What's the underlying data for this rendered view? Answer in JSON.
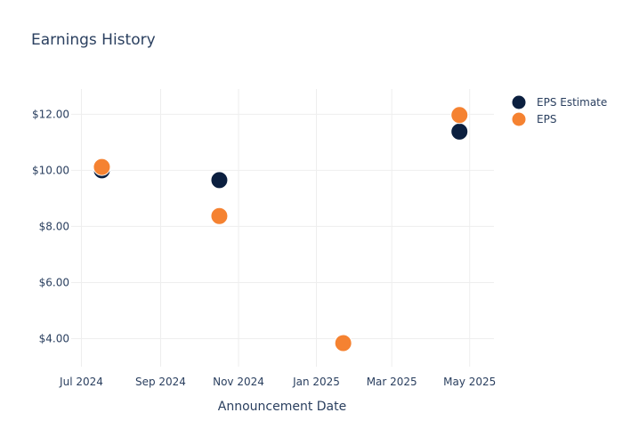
{
  "chart_data": {
    "type": "scatter",
    "title": "Earnings History",
    "xlabel": "Announcement Date",
    "ylabel": "",
    "x_tick_labels": [
      "Jul 2024",
      "Sep 2024",
      "Nov 2024",
      "Jan 2025",
      "Mar 2025",
      "May 2025"
    ],
    "x_ticks": [
      "2024-07-01",
      "2024-09-01",
      "2024-11-01",
      "2025-01-01",
      "2025-03-01",
      "2025-05-01"
    ],
    "y_tick_labels": [
      "$4.00",
      "$6.00",
      "$8.00",
      "$10.00",
      "$12.00"
    ],
    "y_ticks": [
      4,
      6,
      8,
      10,
      12
    ],
    "xlim": [
      "2024-06-23",
      "2025-05-20"
    ],
    "ylim": [
      3,
      12.9
    ],
    "grid": true,
    "legend_position": "top-right",
    "series": [
      {
        "name": "EPS Estimate",
        "color": "#0b1f3f",
        "points": [
          {
            "x": "2024-07-17",
            "y": 10.0
          },
          {
            "x": "2024-10-17",
            "y": 9.65
          },
          {
            "x": "2025-01-22",
            "y": 3.86
          },
          {
            "x": "2025-04-23",
            "y": 11.38
          }
        ]
      },
      {
        "name": "EPS",
        "color": "#f58231",
        "points": [
          {
            "x": "2024-07-17",
            "y": 10.12
          },
          {
            "x": "2024-10-17",
            "y": 8.37
          },
          {
            "x": "2025-01-22",
            "y": 3.84
          },
          {
            "x": "2025-04-23",
            "y": 11.97
          }
        ]
      }
    ]
  }
}
